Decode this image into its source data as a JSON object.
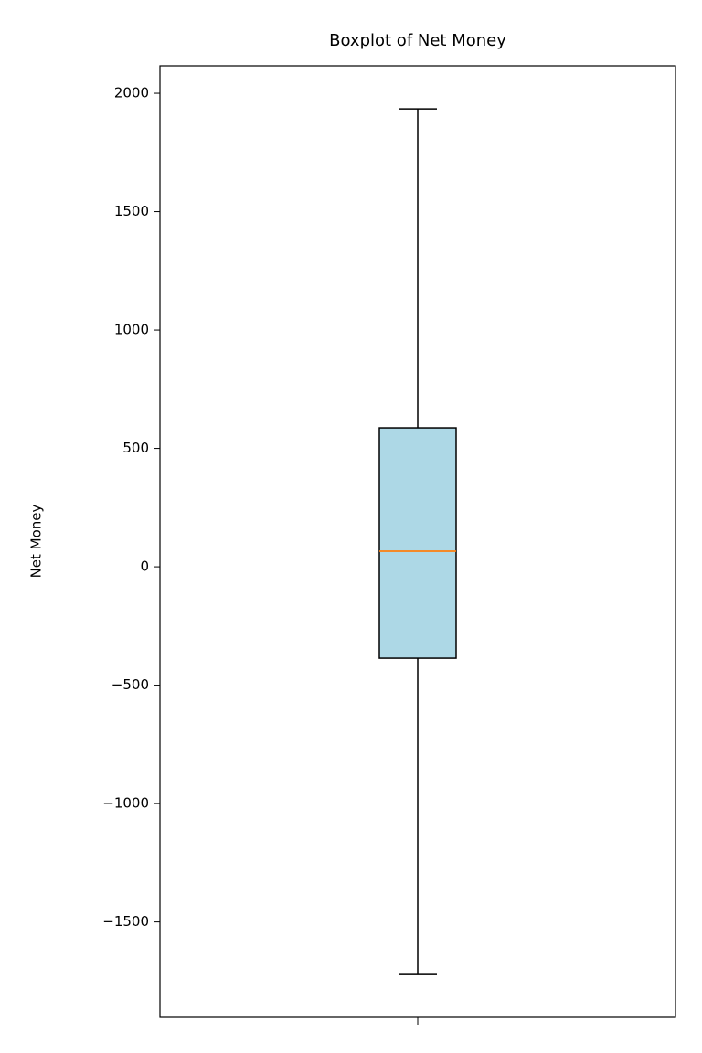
{
  "chart_data": {
    "type": "box",
    "title": "Boxplot of Net Money",
    "y_label": "Net Money",
    "boxes": [
      {
        "whislo": -1722,
        "q1": -386,
        "med": 66,
        "q3": 587,
        "whishi": 1934
      }
    ],
    "box_color": "#add8e6",
    "median_color": "#ff7f0e",
    "ylim": [
      -1903,
      2116
    ],
    "yticks": [
      {
        "value": -1500,
        "label": "−1500"
      },
      {
        "value": -1000,
        "label": "−1000"
      },
      {
        "value": -500,
        "label": "−500"
      },
      0,
      500,
      1000,
      1500,
      2000
    ],
    "grid": false
  }
}
